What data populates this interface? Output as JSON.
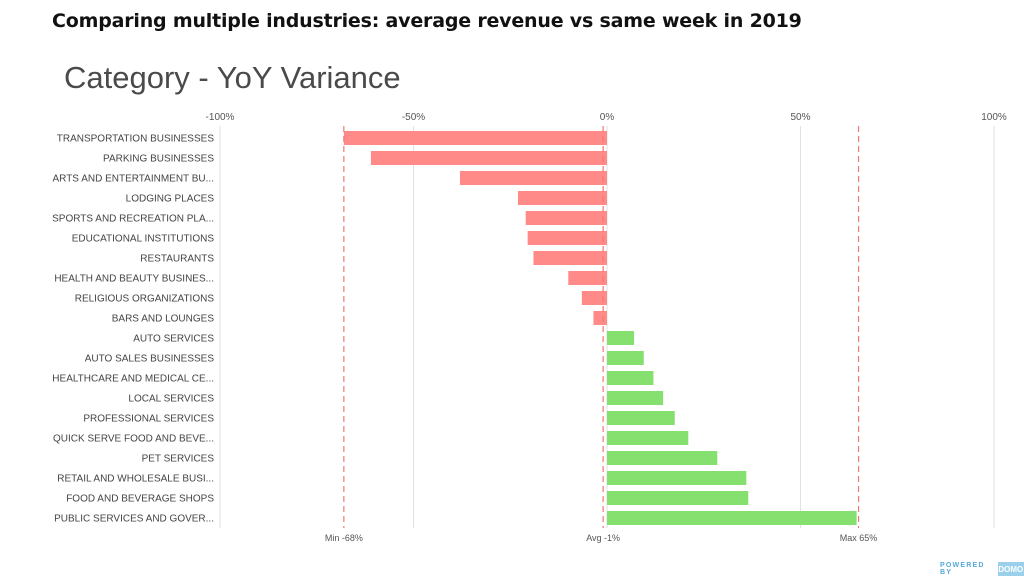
{
  "headline": "Comparing multiple industries: average revenue vs same week in 2019",
  "chart_data": {
    "type": "bar",
    "orientation": "horizontal",
    "title": "Category - YoY Variance",
    "categories": [
      "TRANSPORTATION BUSINESSES",
      "PARKING BUSINESSES",
      "ARTS AND ENTERTAINMENT BU...",
      "LODGING PLACES",
      "SPORTS AND RECREATION PLA...",
      "EDUCATIONAL INSTITUTIONS",
      "RESTAURANTS",
      "HEALTH AND BEAUTY BUSINES...",
      "RELIGIOUS ORGANIZATIONS",
      "BARS AND LOUNGES",
      "AUTO SERVICES",
      "AUTO SALES BUSINESSES",
      "HEALTHCARE AND MEDICAL CE...",
      "LOCAL SERVICES",
      "PROFESSIONAL SERVICES",
      "QUICK SERVE FOOD AND BEVE...",
      "PET SERVICES",
      "RETAIL AND WHOLESALE BUSI...",
      "FOOD AND BEVERAGE SHOPS",
      "PUBLIC SERVICES AND GOVER..."
    ],
    "values": [
      -68,
      -61,
      -38,
      -23,
      -21,
      -20.5,
      -19,
      -10,
      -6.5,
      -3.5,
      7,
      9.5,
      12,
      14.5,
      17.5,
      21,
      28.5,
      36,
      36.5,
      64.5
    ],
    "xlim": [
      -100,
      100
    ],
    "ticks": [
      -100,
      -50,
      0,
      50,
      100
    ],
    "tick_labels": [
      "-100%",
      "-50%",
      "0%",
      "50%",
      "100%"
    ],
    "reference_lines": [
      {
        "label": "Min -68%",
        "value": -68
      },
      {
        "label": "Avg -1%",
        "value": -1
      },
      {
        "label": "Max 65%",
        "value": 65
      }
    ],
    "colors": {
      "negative": "#ff8a87",
      "positive": "#86e06f",
      "reference": "#ef7a72",
      "grid": "#e2e2e2"
    },
    "grid": true
  },
  "footer": {
    "powered_by": "POWERED BY",
    "brand": "DOMO"
  }
}
